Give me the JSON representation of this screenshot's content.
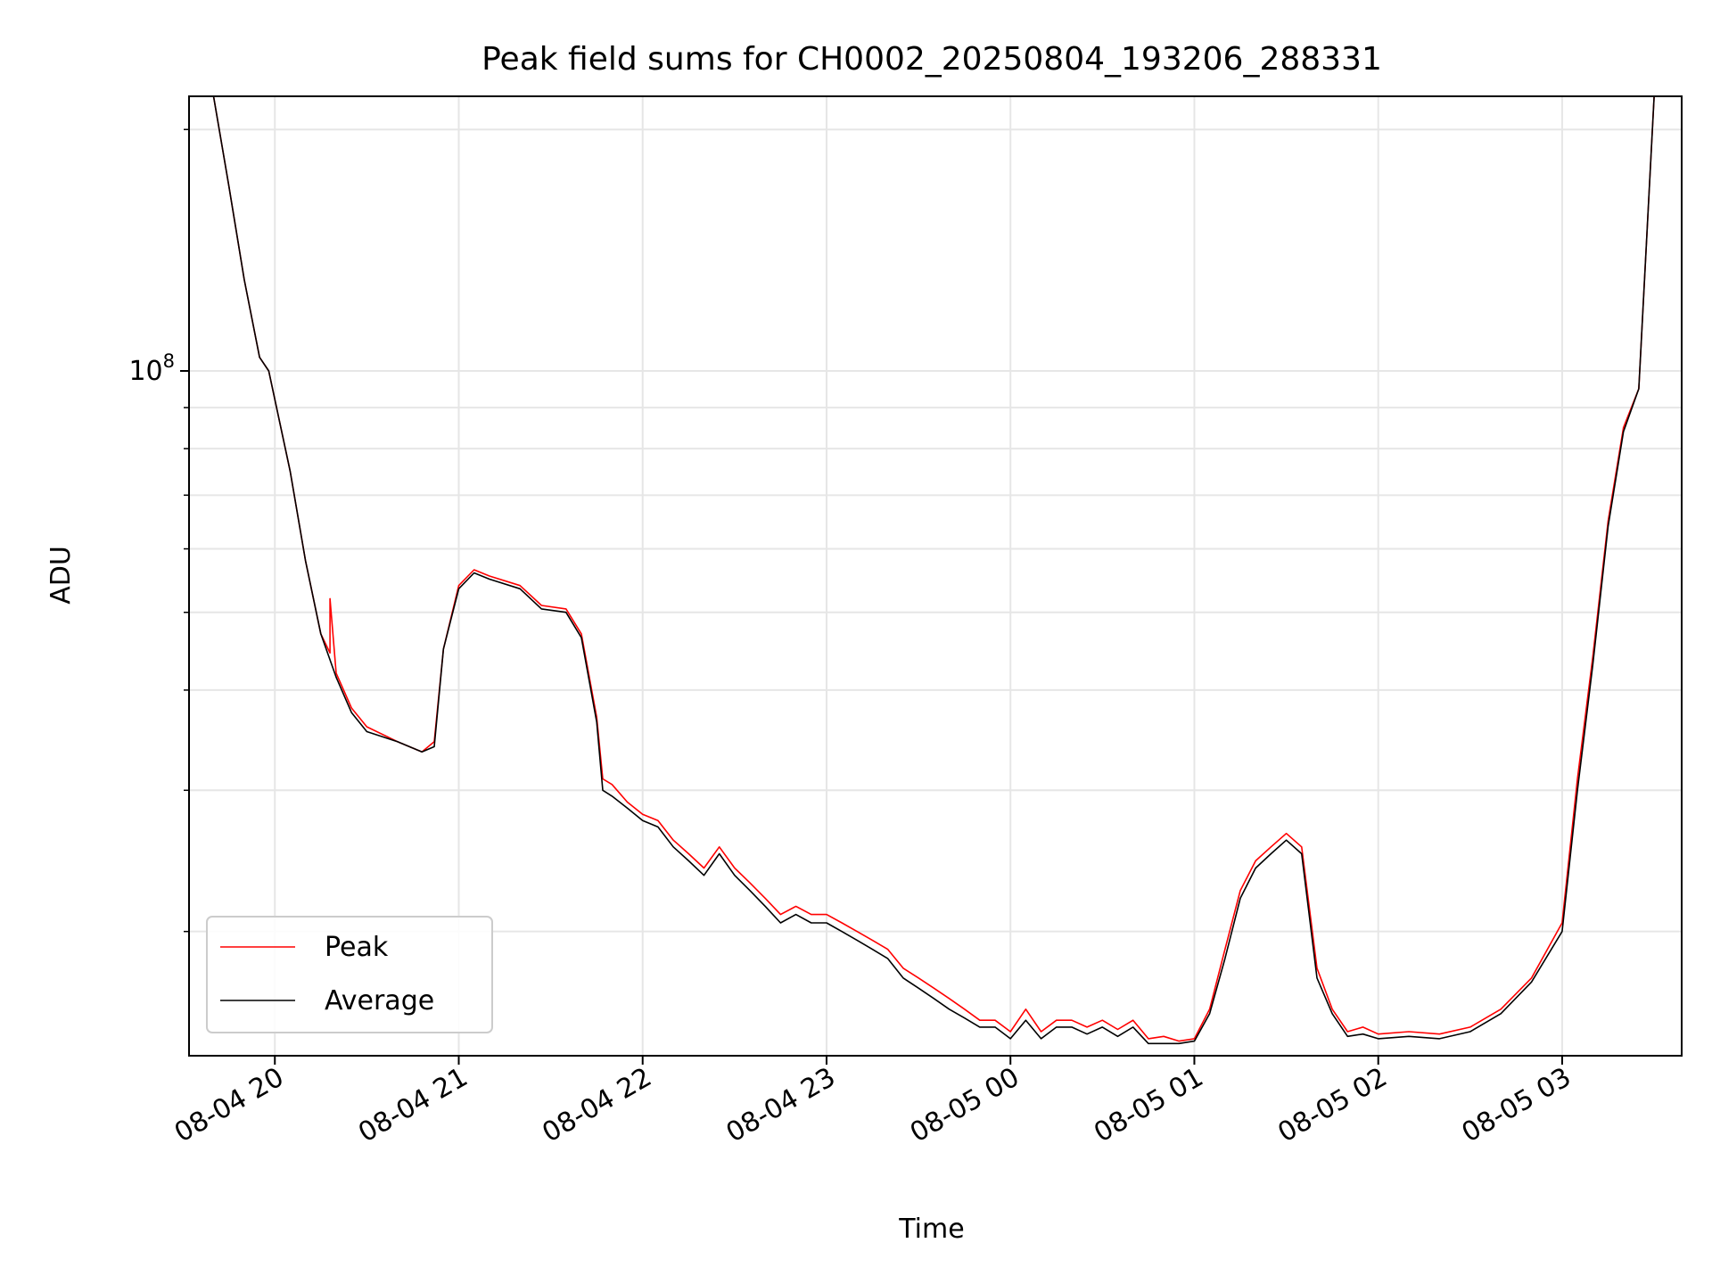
{
  "chart_data": {
    "type": "line",
    "title": "Peak field sums for CH0002_20250804_193206_288331",
    "xlabel": "Time",
    "ylabel": "ADU",
    "yscale": "log",
    "grid": true,
    "legend_position": "lower-left",
    "xlim": [
      "2025-08-04 19:32",
      "2025-08-05 03:39"
    ],
    "ylim": [
      14000000,
      220000000
    ],
    "x_ticks": [
      {
        "value": "2025-08-04 20:00",
        "label": "08-04 20"
      },
      {
        "value": "2025-08-04 21:00",
        "label": "08-04 21"
      },
      {
        "value": "2025-08-04 22:00",
        "label": "08-04 22"
      },
      {
        "value": "2025-08-04 23:00",
        "label": "08-04 23"
      },
      {
        "value": "2025-08-05 00:00",
        "label": "08-05 00"
      },
      {
        "value": "2025-08-05 01:00",
        "label": "08-05 01"
      },
      {
        "value": "2025-08-05 02:00",
        "label": "08-05 02"
      },
      {
        "value": "2025-08-05 03:00",
        "label": "08-05 03"
      }
    ],
    "y_major_ticks": [
      {
        "value": 100000000,
        "base": "10",
        "exponent": "8"
      }
    ],
    "y_minor_ticks": [
      20000000,
      30000000,
      40000000,
      50000000,
      60000000,
      70000000,
      80000000,
      90000000,
      200000000
    ],
    "series": [
      {
        "name": "Peak",
        "color": "#ff0000",
        "x": [
          "2025-08-04 19:40",
          "2025-08-04 19:45",
          "2025-08-04 19:50",
          "2025-08-04 19:55",
          "2025-08-04 19:58",
          "2025-08-04 20:05",
          "2025-08-04 20:10",
          "2025-08-04 20:15",
          "2025-08-04 20:18",
          "2025-08-04 20:18",
          "2025-08-04 20:20",
          "2025-08-04 20:25",
          "2025-08-04 20:30",
          "2025-08-04 20:40",
          "2025-08-04 20:48",
          "2025-08-04 20:52",
          "2025-08-04 20:55",
          "2025-08-04 21:00",
          "2025-08-04 21:05",
          "2025-08-04 21:10",
          "2025-08-04 21:20",
          "2025-08-04 21:27",
          "2025-08-04 21:35",
          "2025-08-04 21:40",
          "2025-08-04 21:45",
          "2025-08-04 21:47",
          "2025-08-04 21:50",
          "2025-08-04 21:55",
          "2025-08-04 22:00",
          "2025-08-04 22:05",
          "2025-08-04 22:10",
          "2025-08-04 22:15",
          "2025-08-04 22:20",
          "2025-08-04 22:25",
          "2025-08-04 22:30",
          "2025-08-04 22:35",
          "2025-08-04 22:40",
          "2025-08-04 22:45",
          "2025-08-04 22:50",
          "2025-08-04 22:55",
          "2025-08-04 23:00",
          "2025-08-04 23:05",
          "2025-08-04 23:10",
          "2025-08-04 23:15",
          "2025-08-04 23:20",
          "2025-08-04 23:25",
          "2025-08-04 23:30",
          "2025-08-04 23:35",
          "2025-08-04 23:40",
          "2025-08-04 23:45",
          "2025-08-04 23:50",
          "2025-08-04 23:55",
          "2025-08-05 00:00",
          "2025-08-05 00:05",
          "2025-08-05 00:10",
          "2025-08-05 00:15",
          "2025-08-05 00:20",
          "2025-08-05 00:25",
          "2025-08-05 00:30",
          "2025-08-05 00:35",
          "2025-08-05 00:40",
          "2025-08-05 00:45",
          "2025-08-05 00:50",
          "2025-08-05 00:55",
          "2025-08-05 01:00",
          "2025-08-05 01:05",
          "2025-08-05 01:10",
          "2025-08-05 01:15",
          "2025-08-05 01:20",
          "2025-08-05 01:25",
          "2025-08-05 01:30",
          "2025-08-05 01:35",
          "2025-08-05 01:40",
          "2025-08-05 01:45",
          "2025-08-05 01:50",
          "2025-08-05 01:55",
          "2025-08-05 02:00",
          "2025-08-05 02:10",
          "2025-08-05 02:20",
          "2025-08-05 02:30",
          "2025-08-05 02:40",
          "2025-08-05 02:50",
          "2025-08-05 03:00",
          "2025-08-05 03:05",
          "2025-08-05 03:10",
          "2025-08-05 03:15",
          "2025-08-05 03:20",
          "2025-08-05 03:25",
          "2025-08-05 03:30"
        ],
        "y": [
          220000000,
          170000000,
          130000000,
          104000000,
          100000000,
          75000000,
          58000000,
          47000000,
          44500000,
          52000000,
          42000000,
          38000000,
          36000000,
          34500000,
          33500000,
          34500000,
          45000000,
          54000000,
          56500000,
          55500000,
          54000000,
          51000000,
          50500000,
          47000000,
          37000000,
          31000000,
          30500000,
          29000000,
          28000000,
          27500000,
          26000000,
          25000000,
          24000000,
          25500000,
          24000000,
          23000000,
          22000000,
          21000000,
          21500000,
          21000000,
          21000000,
          20500000,
          20000000,
          19500000,
          19000000,
          18000000,
          17500000,
          17000000,
          16500000,
          16000000,
          15500000,
          15500000,
          15000000,
          16000000,
          15000000,
          15500000,
          15500000,
          15200000,
          15500000,
          15100000,
          15500000,
          14700000,
          14800000,
          14600000,
          14700000,
          16000000,
          19000000,
          22500000,
          24500000,
          25500000,
          26500000,
          25500000,
          18000000,
          16000000,
          15000000,
          15200000,
          14900000,
          15000000,
          14900000,
          15200000,
          16000000,
          17500000,
          20500000,
          31000000,
          44000000,
          65000000,
          85000000,
          95000000,
          220000000
        ]
      },
      {
        "name": "Average",
        "color": "#000000",
        "x": [
          "2025-08-04 19:40",
          "2025-08-04 19:45",
          "2025-08-04 19:50",
          "2025-08-04 19:55",
          "2025-08-04 19:58",
          "2025-08-04 20:05",
          "2025-08-04 20:10",
          "2025-08-04 20:15",
          "2025-08-04 20:20",
          "2025-08-04 20:25",
          "2025-08-04 20:30",
          "2025-08-04 20:40",
          "2025-08-04 20:48",
          "2025-08-04 20:52",
          "2025-08-04 20:55",
          "2025-08-04 21:00",
          "2025-08-04 21:05",
          "2025-08-04 21:10",
          "2025-08-04 21:20",
          "2025-08-04 21:27",
          "2025-08-04 21:35",
          "2025-08-04 21:40",
          "2025-08-04 21:45",
          "2025-08-04 21:47",
          "2025-08-04 21:50",
          "2025-08-04 21:55",
          "2025-08-04 22:00",
          "2025-08-04 22:05",
          "2025-08-04 22:10",
          "2025-08-04 22:15",
          "2025-08-04 22:20",
          "2025-08-04 22:25",
          "2025-08-04 22:30",
          "2025-08-04 22:35",
          "2025-08-04 22:40",
          "2025-08-04 22:45",
          "2025-08-04 22:50",
          "2025-08-04 22:55",
          "2025-08-04 23:00",
          "2025-08-04 23:05",
          "2025-08-04 23:10",
          "2025-08-04 23:15",
          "2025-08-04 23:20",
          "2025-08-04 23:25",
          "2025-08-04 23:30",
          "2025-08-04 23:35",
          "2025-08-04 23:40",
          "2025-08-04 23:45",
          "2025-08-04 23:50",
          "2025-08-04 23:55",
          "2025-08-05 00:00",
          "2025-08-05 00:05",
          "2025-08-05 00:10",
          "2025-08-05 00:15",
          "2025-08-05 00:20",
          "2025-08-05 00:25",
          "2025-08-05 00:30",
          "2025-08-05 00:35",
          "2025-08-05 00:40",
          "2025-08-05 00:45",
          "2025-08-05 00:50",
          "2025-08-05 00:55",
          "2025-08-05 01:00",
          "2025-08-05 01:05",
          "2025-08-05 01:10",
          "2025-08-05 01:15",
          "2025-08-05 01:20",
          "2025-08-05 01:25",
          "2025-08-05 01:30",
          "2025-08-05 01:35",
          "2025-08-05 01:40",
          "2025-08-05 01:45",
          "2025-08-05 01:50",
          "2025-08-05 01:55",
          "2025-08-05 02:00",
          "2025-08-05 02:10",
          "2025-08-05 02:20",
          "2025-08-05 02:30",
          "2025-08-05 02:40",
          "2025-08-05 02:50",
          "2025-08-05 03:00",
          "2025-08-05 03:05",
          "2025-08-05 03:10",
          "2025-08-05 03:15",
          "2025-08-05 03:20",
          "2025-08-05 03:25",
          "2025-08-05 03:30"
        ],
        "y": [
          220000000,
          170000000,
          130000000,
          104000000,
          100000000,
          75000000,
          58000000,
          47000000,
          41500000,
          37500000,
          35500000,
          34500000,
          33500000,
          34000000,
          45000000,
          53500000,
          56000000,
          55000000,
          53500000,
          50500000,
          50000000,
          46500000,
          36500000,
          30000000,
          29500000,
          28500000,
          27500000,
          27000000,
          25500000,
          24500000,
          23500000,
          25000000,
          23500000,
          22500000,
          21500000,
          20500000,
          21000000,
          20500000,
          20500000,
          20000000,
          19500000,
          19000000,
          18500000,
          17500000,
          17000000,
          16500000,
          16000000,
          15600000,
          15200000,
          15200000,
          14700000,
          15500000,
          14700000,
          15200000,
          15200000,
          14900000,
          15200000,
          14800000,
          15200000,
          14500000,
          14500000,
          14500000,
          14600000,
          15800000,
          18500000,
          22000000,
          24000000,
          25000000,
          26000000,
          25000000,
          17500000,
          15800000,
          14800000,
          14900000,
          14700000,
          14800000,
          14700000,
          15000000,
          15800000,
          17300000,
          20000000,
          30000000,
          43000000,
          64000000,
          84000000,
          95000000,
          220000000
        ]
      }
    ]
  }
}
